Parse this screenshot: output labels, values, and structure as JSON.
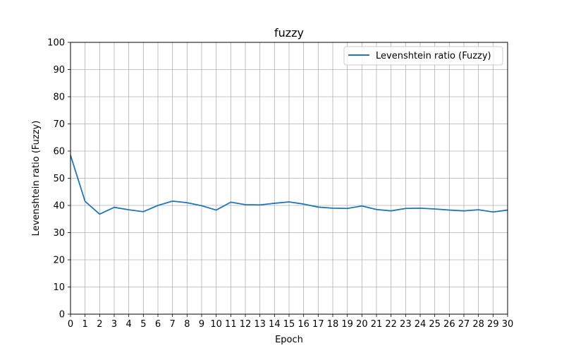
{
  "chart_data": {
    "type": "line",
    "title": "fuzzy",
    "xlabel": "Epoch",
    "ylabel": "Levenshtein ratio (Fuzzy)",
    "xlim": [
      0,
      30
    ],
    "ylim": [
      0,
      100
    ],
    "xticks": [
      0,
      1,
      2,
      3,
      4,
      5,
      6,
      7,
      8,
      9,
      10,
      11,
      12,
      13,
      14,
      15,
      16,
      17,
      18,
      19,
      20,
      21,
      22,
      23,
      24,
      25,
      26,
      27,
      28,
      29,
      30
    ],
    "yticks": [
      0,
      10,
      20,
      30,
      40,
      50,
      60,
      70,
      80,
      90,
      100
    ],
    "grid": true,
    "legend_position": "top-right",
    "series": [
      {
        "name": "Levenshtein ratio (Fuzzy)",
        "color": "#1f77b4",
        "x": [
          0,
          1,
          2,
          3,
          4,
          5,
          6,
          7,
          8,
          9,
          10,
          11,
          12,
          13,
          14,
          15,
          16,
          17,
          18,
          19,
          20,
          21,
          22,
          23,
          24,
          25,
          26,
          27,
          28,
          29,
          30
        ],
        "y": [
          58.5,
          41.5,
          36.8,
          39.3,
          38.4,
          37.7,
          40.0,
          41.6,
          41.0,
          39.9,
          38.3,
          41.2,
          40.3,
          40.2,
          40.8,
          41.3,
          40.5,
          39.4,
          39.0,
          38.9,
          39.8,
          38.5,
          38.0,
          38.9,
          39.0,
          38.7,
          38.3,
          38.0,
          38.4,
          37.6,
          38.3
        ]
      }
    ]
  }
}
